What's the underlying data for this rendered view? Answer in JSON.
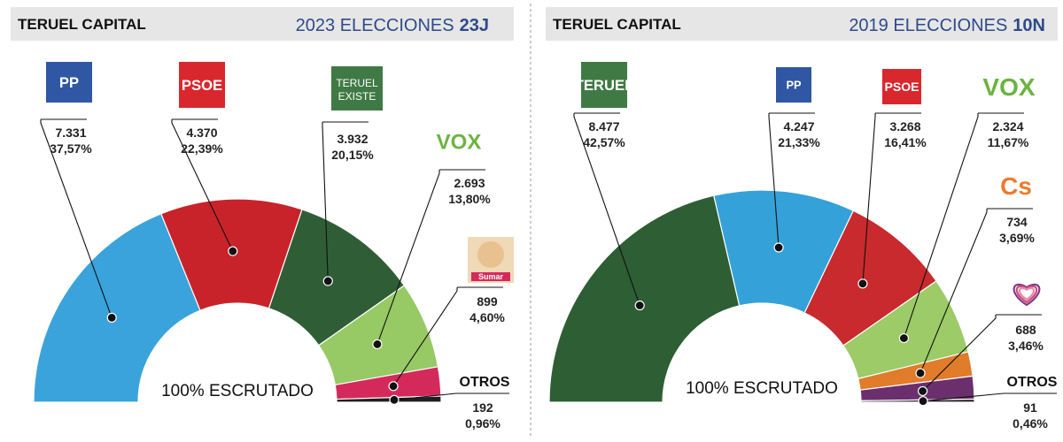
{
  "chart_data": [
    {
      "type": "semicircle-donut",
      "header": {
        "location": "TERUEL CAPITAL",
        "election_prefix": "2023 ELECCIONES",
        "election_code": "23J"
      },
      "center_label": "100% ESCRUTADO",
      "others_label": "OTROS",
      "slices": [
        {
          "party": "PP",
          "votes": "7.331",
          "percent": "37,57%",
          "share": 37.57,
          "color": "#3aa3db",
          "logo": {
            "text": "PP",
            "bg": "#2f57a3",
            "fg": "#ffffff"
          }
        },
        {
          "party": "PSOE",
          "votes": "4.370",
          "percent": "22,39%",
          "share": 22.39,
          "color": "#c8232a",
          "logo": {
            "text": "PSOE",
            "bg": "#d9272e",
            "fg": "#ffffff"
          }
        },
        {
          "party": "TERUEL EXISTE",
          "votes": "3.932",
          "percent": "20,15%",
          "share": 20.15,
          "color": "#2f5e36",
          "logo": {
            "text": "TERUEL",
            "text2": "EXISTE",
            "bg": "#3f7a44",
            "fg": "#ffffff"
          }
        },
        {
          "party": "VOX",
          "votes": "2.693",
          "percent": "13,80%",
          "share": 13.8,
          "color": "#97c965",
          "logo": {
            "text": "VOX",
            "bg": "none",
            "fg": "#6bb43f"
          }
        },
        {
          "party": "Sumar",
          "votes": "899",
          "percent": "4,60%",
          "share": 4.6,
          "color": "#d42a5b",
          "logo": {
            "text": "Sumar",
            "bg": "#f0d9b6",
            "fg": "#ffffff"
          }
        },
        {
          "party": "OTROS",
          "votes": "192",
          "percent": "0,96%",
          "share": 0.96,
          "color": "#1f1f1f",
          "logo": null
        }
      ]
    },
    {
      "type": "semicircle-donut",
      "header": {
        "location": "TERUEL CAPITAL",
        "election_prefix": "2019 ELECCIONES",
        "election_code": "10N"
      },
      "center_label": "100% ESCRUTADO",
      "others_label": "OTROS",
      "slices": [
        {
          "party": "TERUEL EXISTE",
          "votes": "8.477",
          "percent": "42,57%",
          "share": 42.57,
          "color": "#2e5e33",
          "logo": {
            "text": "TERUEL",
            "bg": "#3f7a44",
            "fg": "#ffffff"
          }
        },
        {
          "party": "PP",
          "votes": "4.247",
          "percent": "21,33%",
          "share": 21.33,
          "color": "#35a1d9",
          "logo": {
            "text": "PP",
            "bg": "#2f57a3",
            "fg": "#ffffff"
          }
        },
        {
          "party": "PSOE",
          "votes": "3.268",
          "percent": "16,41%",
          "share": 16.41,
          "color": "#c82a2e",
          "logo": {
            "text": "PSOE",
            "bg": "#d9272e",
            "fg": "#ffffff"
          }
        },
        {
          "party": "VOX",
          "votes": "2.324",
          "percent": "11,67%",
          "share": 11.67,
          "color": "#9ccb67",
          "logo": {
            "text": "VOX",
            "bg": "none",
            "fg": "#6bb43f"
          }
        },
        {
          "party": "Cs",
          "votes": "734",
          "percent": "3,69%",
          "share": 3.69,
          "color": "#e07c2a",
          "logo": {
            "text": "Cs",
            "bg": "none",
            "fg": "#ee7a2a"
          }
        },
        {
          "party": "Unidas Podemos",
          "votes": "688",
          "percent": "3,46%",
          "share": 3.46,
          "color": "#6b2f6e",
          "logo": {
            "text": "heart",
            "bg": "none",
            "fg": "#7b3b8c"
          }
        },
        {
          "party": "OTROS",
          "votes": "91",
          "percent": "0,46%",
          "share": 0.46,
          "color": "#222222",
          "logo": null
        }
      ]
    }
  ]
}
